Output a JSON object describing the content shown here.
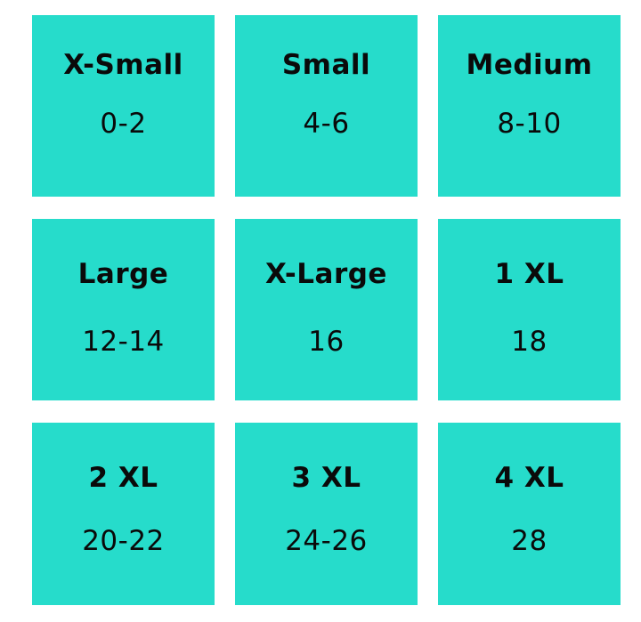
{
  "accent_color": "#26dccb",
  "sizes": [
    {
      "label": "X-Small",
      "range": "0-2"
    },
    {
      "label": "Small",
      "range": "4-6"
    },
    {
      "label": "Medium",
      "range": "8-10"
    },
    {
      "label": "Large",
      "range": "12-14"
    },
    {
      "label": "X-Large",
      "range": "16"
    },
    {
      "label": "1 XL",
      "range": "18"
    },
    {
      "label": "2 XL",
      "range": "20-22"
    },
    {
      "label": "3 XL",
      "range": "24-26"
    },
    {
      "label": "4 XL",
      "range": "28"
    }
  ]
}
